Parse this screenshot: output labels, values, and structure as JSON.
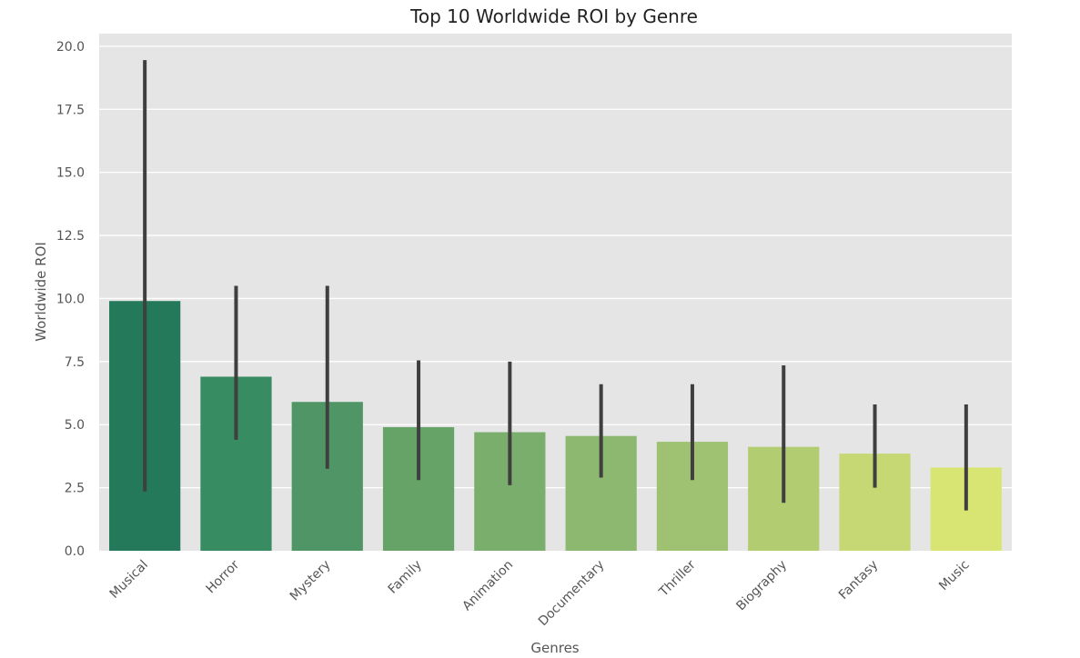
{
  "chart_data": {
    "type": "bar",
    "title": "Top 10 Worldwide ROI by Genre",
    "xlabel": "Genres",
    "ylabel": "Worldwide ROI",
    "categories": [
      "Musical",
      "Horror",
      "Mystery",
      "Family",
      "Animation",
      "Documentary",
      "Thriller",
      "Biography",
      "Fantasy",
      "Music"
    ],
    "values": [
      9.9,
      6.9,
      5.9,
      4.9,
      4.7,
      4.55,
      4.32,
      4.12,
      3.85,
      3.3
    ],
    "error_low": [
      2.35,
      4.4,
      3.25,
      2.8,
      2.6,
      2.9,
      2.8,
      1.9,
      2.5,
      1.6
    ],
    "error_high": [
      19.45,
      10.5,
      10.5,
      7.55,
      7.5,
      6.6,
      6.6,
      7.35,
      5.8,
      5.8
    ],
    "ylim": [
      0,
      20.5
    ],
    "yticks": [
      "0.0",
      "2.5",
      "5.0",
      "7.5",
      "10.0",
      "12.5",
      "15.0",
      "17.5",
      "20.0"
    ],
    "ytick_values": [
      0,
      2.5,
      5,
      7.5,
      10,
      12.5,
      15,
      17.5,
      20
    ],
    "grid": true,
    "colors": [
      "#23795a",
      "#378c62",
      "#509565",
      "#66a367",
      "#7aae6c",
      "#8cb870",
      "#9ec271",
      "#b2cc72",
      "#c5d873",
      "#d9e573"
    ],
    "background": "#e5e5e5",
    "error_color": "#3f3f3f"
  }
}
